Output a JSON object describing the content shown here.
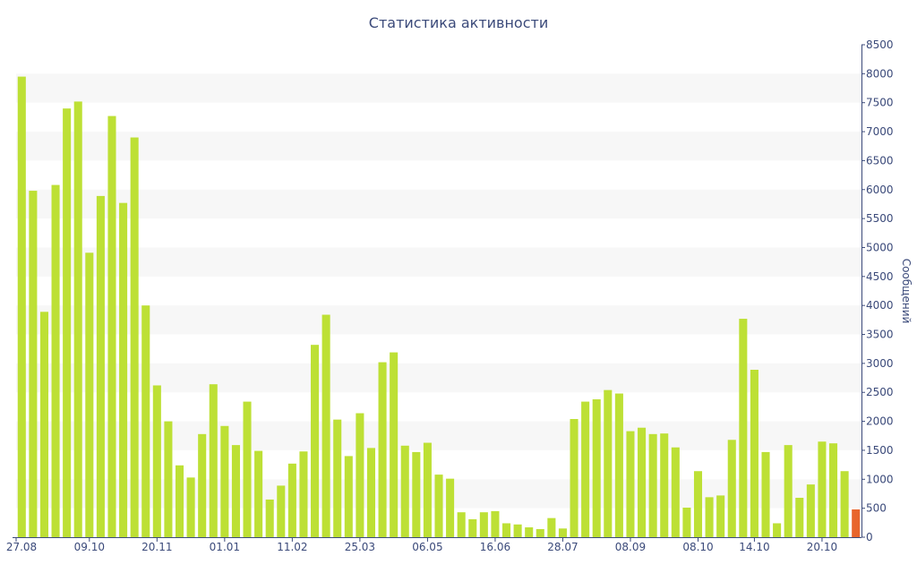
{
  "chart_data": {
    "type": "bar",
    "title": "Статистика активности",
    "ylabel": "Сообщений",
    "xlabel": "",
    "ylim": [
      0,
      8500
    ],
    "y_ticks": [
      0,
      500,
      1000,
      1500,
      2000,
      2500,
      3000,
      3500,
      4000,
      4500,
      5000,
      5500,
      6000,
      6500,
      7000,
      7500,
      8000,
      8500
    ],
    "x_tick_labels": [
      {
        "label": "27.08",
        "index": 0
      },
      {
        "label": "09.10",
        "index": 6
      },
      {
        "label": "20.11",
        "index": 12
      },
      {
        "label": "01.01",
        "index": 18
      },
      {
        "label": "11.02",
        "index": 24
      },
      {
        "label": "25.03",
        "index": 30
      },
      {
        "label": "06.05",
        "index": 36
      },
      {
        "label": "16.06",
        "index": 42
      },
      {
        "label": "28.07",
        "index": 48
      },
      {
        "label": "08.09",
        "index": 54
      },
      {
        "label": "08.10",
        "index": 60
      },
      {
        "label": "14.10",
        "index": 65
      },
      {
        "label": "20.10",
        "index": 71
      }
    ],
    "values": [
      7950,
      5980,
      3890,
      6080,
      7400,
      7520,
      4910,
      5890,
      7270,
      5770,
      6900,
      4000,
      2620,
      2000,
      1240,
      1030,
      1780,
      2640,
      1920,
      1590,
      2340,
      1490,
      650,
      890,
      1270,
      1480,
      3320,
      3840,
      2030,
      1400,
      2140,
      1540,
      3020,
      3190,
      1580,
      1470,
      1630,
      1080,
      1010,
      430,
      310,
      430,
      450,
      240,
      220,
      170,
      140,
      330,
      150,
      2040,
      2340,
      2380,
      2540,
      2480,
      1830,
      1890,
      1780,
      1790,
      1550,
      510,
      1140,
      690,
      720,
      1680,
      3770,
      2890,
      1470,
      240,
      1590,
      680,
      910,
      1650,
      1620,
      1140,
      480
    ],
    "highlight_index": 74,
    "colors": {
      "bar": "#bde035",
      "highlight": "#e8652c",
      "band": "#f7f7f7",
      "axis": "#3b4a7a"
    },
    "grid": "alternating-bands",
    "y_axis_side": "right",
    "legend": "none"
  }
}
